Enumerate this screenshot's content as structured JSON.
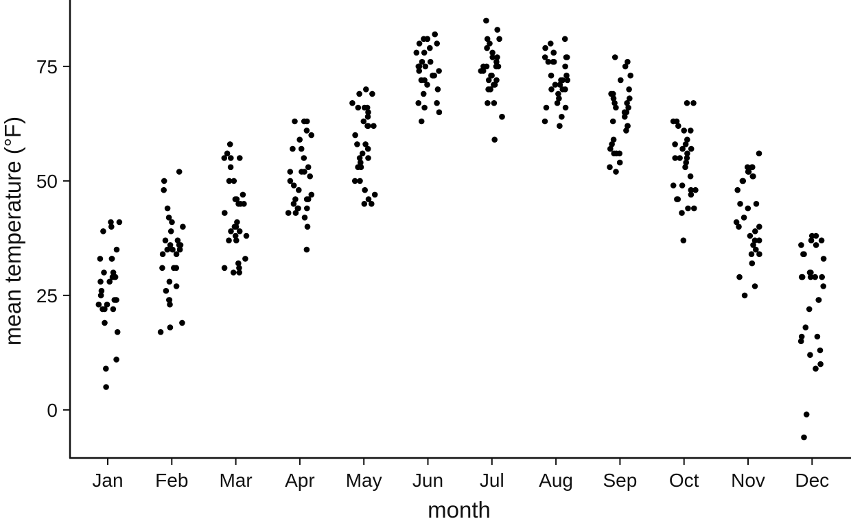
{
  "chart_data": {
    "type": "scatter",
    "title": "",
    "xlabel": "month",
    "ylabel": "mean temperature (°F)",
    "ylim": [
      -10.5,
      89.5
    ],
    "yticks": [
      0,
      25,
      50,
      75
    ],
    "grid": false,
    "legend": "none",
    "point_color": "#000000",
    "categories": [
      "Jan",
      "Feb",
      "Mar",
      "Apr",
      "May",
      "Jun",
      "Jul",
      "Aug",
      "Sep",
      "Oct",
      "Nov",
      "Dec"
    ],
    "series": [
      {
        "values": [
          [
            40,
            39,
            41,
            41,
            33,
            33,
            33,
            35,
            29,
            29,
            30,
            30,
            29,
            28,
            28,
            26,
            25,
            24,
            24,
            24,
            23,
            23,
            22,
            22,
            22,
            19,
            17,
            11,
            9,
            5
          ],
          [
            52,
            50,
            48,
            44,
            42,
            41,
            40,
            39,
            37,
            37,
            36,
            36,
            36,
            35,
            35,
            35,
            34,
            34,
            31,
            31,
            31,
            28,
            27,
            26,
            24,
            24,
            23,
            19,
            18,
            17
          ],
          [
            58,
            56,
            55,
            55,
            55,
            53,
            50,
            50,
            47,
            46,
            46,
            45,
            45,
            45,
            43,
            41,
            40,
            40,
            39,
            39,
            38,
            38,
            37,
            37,
            33,
            32,
            31,
            31,
            30,
            30
          ],
          [
            63,
            63,
            63,
            61,
            60,
            59,
            57,
            57,
            55,
            53,
            52,
            52,
            52,
            51,
            50,
            49,
            48,
            46,
            46,
            46,
            45,
            44,
            44,
            44,
            43,
            43,
            42,
            40,
            35,
            47
          ],
          [
            70,
            69,
            69,
            67,
            66,
            66,
            66,
            65,
            64,
            63,
            62,
            62,
            62,
            60,
            58,
            58,
            57,
            56,
            55,
            55,
            54,
            53,
            53,
            50,
            50,
            48,
            47,
            46,
            45,
            45
          ],
          [
            82,
            81,
            81,
            81,
            80,
            80,
            78,
            78,
            76,
            75,
            75,
            75,
            75,
            74,
            73,
            73,
            73,
            72,
            72,
            71,
            70,
            69,
            67,
            67,
            66,
            65,
            63,
            76,
            79,
            74
          ],
          [
            85,
            83,
            81,
            81,
            79,
            78,
            77,
            77,
            76,
            75,
            75,
            75,
            75,
            74,
            74,
            73,
            73,
            72,
            72,
            71,
            71,
            70,
            70,
            70,
            67,
            67,
            64,
            64,
            59,
            80
          ],
          [
            81,
            80,
            79,
            78,
            78,
            77,
            77,
            77,
            76,
            76,
            76,
            75,
            73,
            73,
            72,
            72,
            72,
            71,
            71,
            70,
            70,
            70,
            69,
            68,
            67,
            66,
            66,
            64,
            63,
            62
          ],
          [
            77,
            76,
            75,
            73,
            72,
            70,
            69,
            69,
            68,
            68,
            67,
            67,
            66,
            66,
            65,
            65,
            64,
            63,
            62,
            62,
            61,
            59,
            58,
            57,
            56,
            56,
            56,
            54,
            53,
            52
          ],
          [
            67,
            67,
            63,
            63,
            62,
            61,
            61,
            59,
            58,
            58,
            57,
            57,
            56,
            55,
            55,
            55,
            54,
            53,
            51,
            49,
            49,
            48,
            48,
            47,
            46,
            46,
            44,
            44,
            43,
            37
          ],
          [
            56,
            53,
            53,
            53,
            52,
            52,
            51,
            51,
            50,
            50,
            48,
            45,
            45,
            44,
            42,
            41,
            40,
            40,
            39,
            38,
            37,
            37,
            36,
            35,
            34,
            34,
            32,
            29,
            27,
            25
          ],
          [
            38,
            38,
            37,
            37,
            36,
            36,
            34,
            34,
            33,
            30,
            30,
            29,
            29,
            29,
            29,
            27,
            24,
            24,
            22,
            18,
            16,
            16,
            15,
            13,
            12,
            10,
            9,
            -1,
            -6,
            29
          ]
        ]
      }
    ]
  }
}
